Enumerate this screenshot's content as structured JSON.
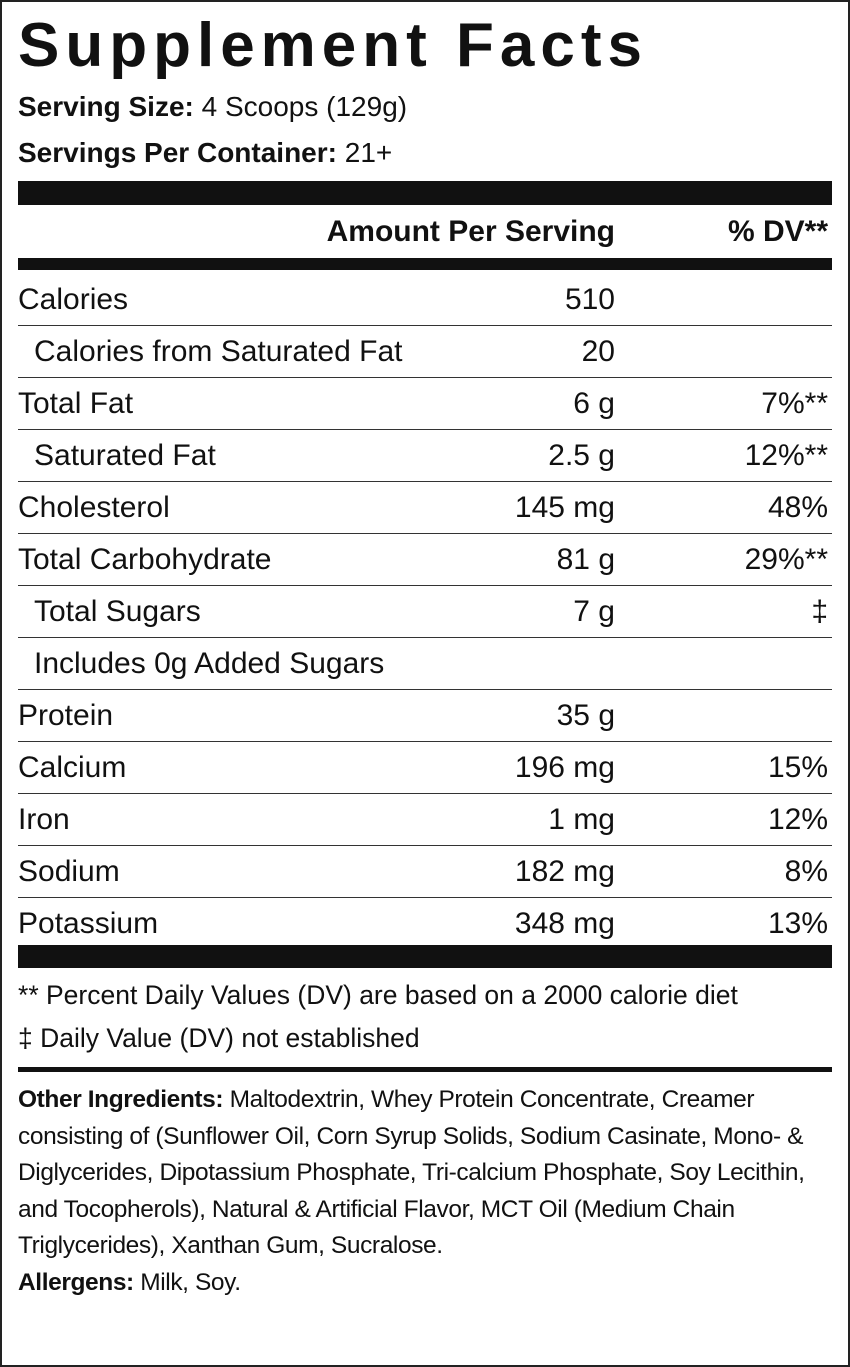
{
  "title": "Supplement Facts",
  "serving_size": {
    "label": "Serving Size:",
    "value": "4 Scoops (129g)"
  },
  "servings_per_container": {
    "label": "Servings Per Container:",
    "value": "21+"
  },
  "header": {
    "amount": "Amount Per Serving",
    "dv": "% DV**"
  },
  "rows": [
    {
      "label": "Calories",
      "amount": "510",
      "dv": ""
    },
    {
      "label": "Calories from Saturated Fat",
      "amount": "20",
      "dv": ""
    },
    {
      "label": "Total Fat",
      "amount": "6 g",
      "dv": "7%**"
    },
    {
      "label": "Saturated Fat",
      "amount": "2.5 g",
      "dv": "12%**"
    },
    {
      "label": "Cholesterol",
      "amount": "145 mg",
      "dv": "48%"
    },
    {
      "label": "Total Carbohydrate",
      "amount": "81 g",
      "dv": "29%**"
    },
    {
      "label": "Total Sugars",
      "amount": "7 g",
      "dv": "‡"
    },
    {
      "label": "Includes 0g Added Sugars",
      "amount": "",
      "dv": ""
    },
    {
      "label": "Protein",
      "amount": "35 g",
      "dv": ""
    },
    {
      "label": "Calcium",
      "amount": "196 mg",
      "dv": "15%"
    },
    {
      "label": "Iron",
      "amount": "1 mg",
      "dv": "12%"
    },
    {
      "label": "Sodium",
      "amount": "182 mg",
      "dv": "8%"
    },
    {
      "label": "Potassium",
      "amount": "348 mg",
      "dv": "13%"
    }
  ],
  "footnotes": [
    "** Percent Daily Values (DV) are based on a 2000 calorie diet",
    "‡ Daily Value (DV) not established"
  ],
  "ingredients": {
    "label": "Other Ingredients:",
    "text": "Maltodextrin, Whey Protein Concentrate, Creamer consisting of (Sunflower Oil, Corn Syrup Solids, Sodium Casinate, Mono- & Diglycerides, Dipotassium Phosphate, Tri-calcium Phosphate, Soy Lecithin, and Tocopherols), Natural & Artificial Flavor, MCT Oil (Medium Chain Triglycerides), Xanthan Gum, Sucralose."
  },
  "allergens": {
    "label": "Allergens:",
    "text": "Milk, Soy."
  }
}
